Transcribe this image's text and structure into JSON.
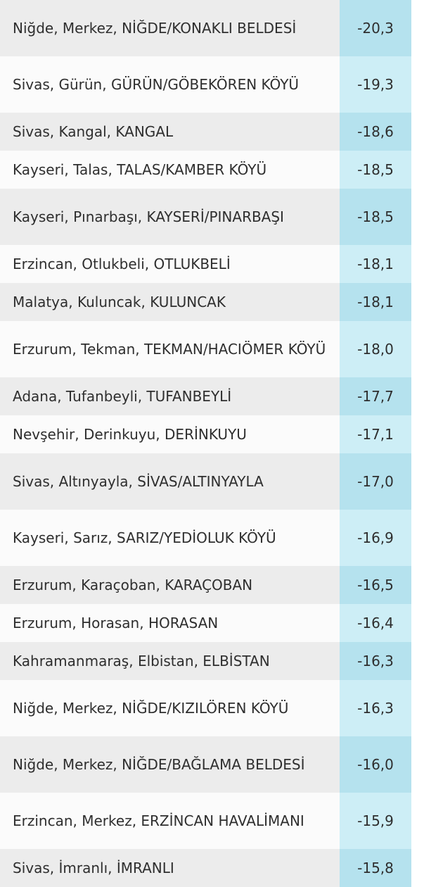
{
  "table": {
    "rows": [
      [
        "Niğde, Merkez, NİĞDE/KONAKLI BELDESİ",
        "-20,3"
      ],
      [
        "Sivas, Gürün, GÜRÜN/GÖBEKÖREN KÖYÜ",
        "-19,3"
      ],
      [
        "Sivas, Kangal, KANGAL",
        "-18,6"
      ],
      [
        "Kayseri, Talas, TALAS/KAMBER KÖYÜ",
        "-18,5"
      ],
      [
        "Kayseri, Pınarbaşı, KAYSERİ/PINARBAŞI",
        "-18,5"
      ],
      [
        "Erzincan, Otlukbeli, OTLUKBELİ",
        "-18,1"
      ],
      [
        "Malatya, Kuluncak, KULUNCAK",
        "-18,1"
      ],
      [
        "Erzurum, Tekman, TEKMAN/HACIÖMER KÖYÜ",
        "-18,0"
      ],
      [
        "Adana, Tufanbeyli, TUFANBEYLİ",
        "-17,7"
      ],
      [
        "Nevşehir, Derinkuyu, DERİNKUYU",
        "-17,1"
      ],
      [
        "Sivas, Altınyayla, SİVAS/ALTINYAYLA",
        "-17,0"
      ],
      [
        "Kayseri, Sarız, SARIZ/YEDİOLUK KÖYÜ",
        "-16,9"
      ],
      [
        "Erzurum, Karaçoban, KARAÇOBAN",
        "-16,5"
      ],
      [
        "Erzurum, Horasan, HORASAN",
        "-16,4"
      ],
      [
        "Kahramanmaraş, Elbistan, ELBİSTAN",
        "-16,3"
      ],
      [
        "Niğde, Merkez, NİĞDE/KIZILÖREN KÖYÜ",
        "-16,3"
      ],
      [
        "Niğde, Merkez, NİĞDE/BAĞLAMA BELDESİ",
        "-16,0"
      ],
      [
        "Erzincan, Merkez, ERZİNCAN HAVALİMANI",
        "-15,9"
      ],
      [
        "Sivas, İmranlı, İMRANLI",
        "-15,8"
      ]
    ]
  }
}
